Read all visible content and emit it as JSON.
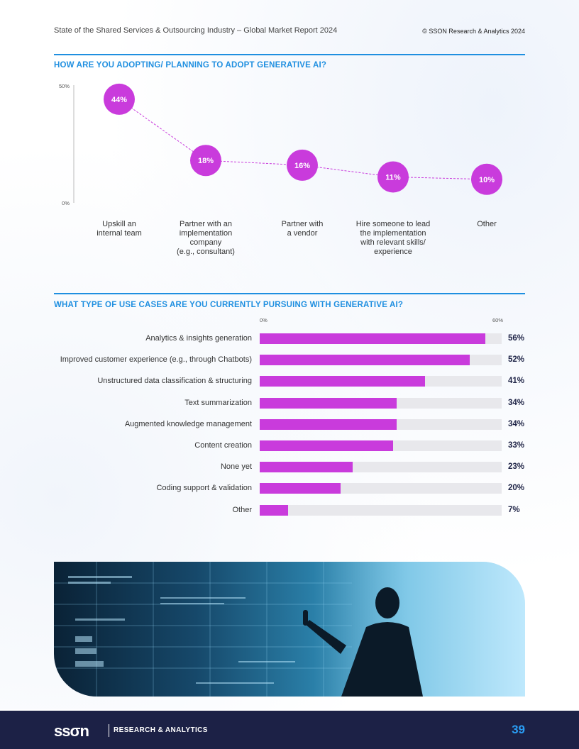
{
  "header": {
    "title": "State of the Shared Services & Outsourcing Industry – Global Market Report 2024",
    "copyright": "© SSON Research & Analytics 2024"
  },
  "section1": {
    "title": "HOW ARE YOU ADOPTING/ PLANNING TO ADOPT GENERATIVE AI?"
  },
  "section2": {
    "title": "WHAT TYPE OF USE CASES ARE YOU CURRENTLY PURSUING WITH GENERATIVE AI?"
  },
  "chart_data": [
    {
      "type": "line",
      "title": "HOW ARE YOU ADOPTING/ PLANNING TO ADOPT GENERATIVE AI?",
      "categories": [
        "Upskill an\ninternal team",
        "Partner with an\nimplementation\ncompany\n(e.g., consultant)",
        "Partner with\na vendor",
        "Hire someone to lead\nthe implementation\nwith relevant skills/\nexperience",
        "Other"
      ],
      "values": [
        44,
        18,
        16,
        11,
        10
      ],
      "value_labels": [
        "44%",
        "18%",
        "16%",
        "11%",
        "10%"
      ],
      "y_tick_labels": [
        "50%",
        "0%"
      ],
      "ylim": [
        0,
        50
      ],
      "grid": false,
      "marker_color": "#c93bdc"
    },
    {
      "type": "bar",
      "orientation": "horizontal",
      "title": "WHAT TYPE OF USE CASES ARE YOU CURRENTLY PURSUING WITH GENERATIVE AI?",
      "categories": [
        "Analytics & insights generation",
        "Improved customer experience (e.g., through Chatbots)",
        "Unstructured data classification & structuring",
        "Text summarization",
        "Augmented knowledge management",
        "Content creation",
        "None yet",
        "Coding support & validation",
        "Other"
      ],
      "values": [
        56,
        52,
        41,
        34,
        34,
        33,
        23,
        20,
        7
      ],
      "value_labels": [
        "56%",
        "52%",
        "41%",
        "34%",
        "34%",
        "33%",
        "23%",
        "20%",
        "7%"
      ],
      "x_tick_labels": [
        "0%",
        "60%"
      ],
      "xlim": [
        0,
        60
      ],
      "grid": false,
      "bar_color": "#c93bdc",
      "track_color": "#e8e8ec"
    }
  ],
  "footer": {
    "logo": "ssσn",
    "subtitle": "RESEARCH & ANALYTICS",
    "page_number": "39"
  },
  "colors": {
    "accent": "#1f8fe0",
    "highlight": "#c93bdc",
    "footer_bg": "#1c2146"
  }
}
